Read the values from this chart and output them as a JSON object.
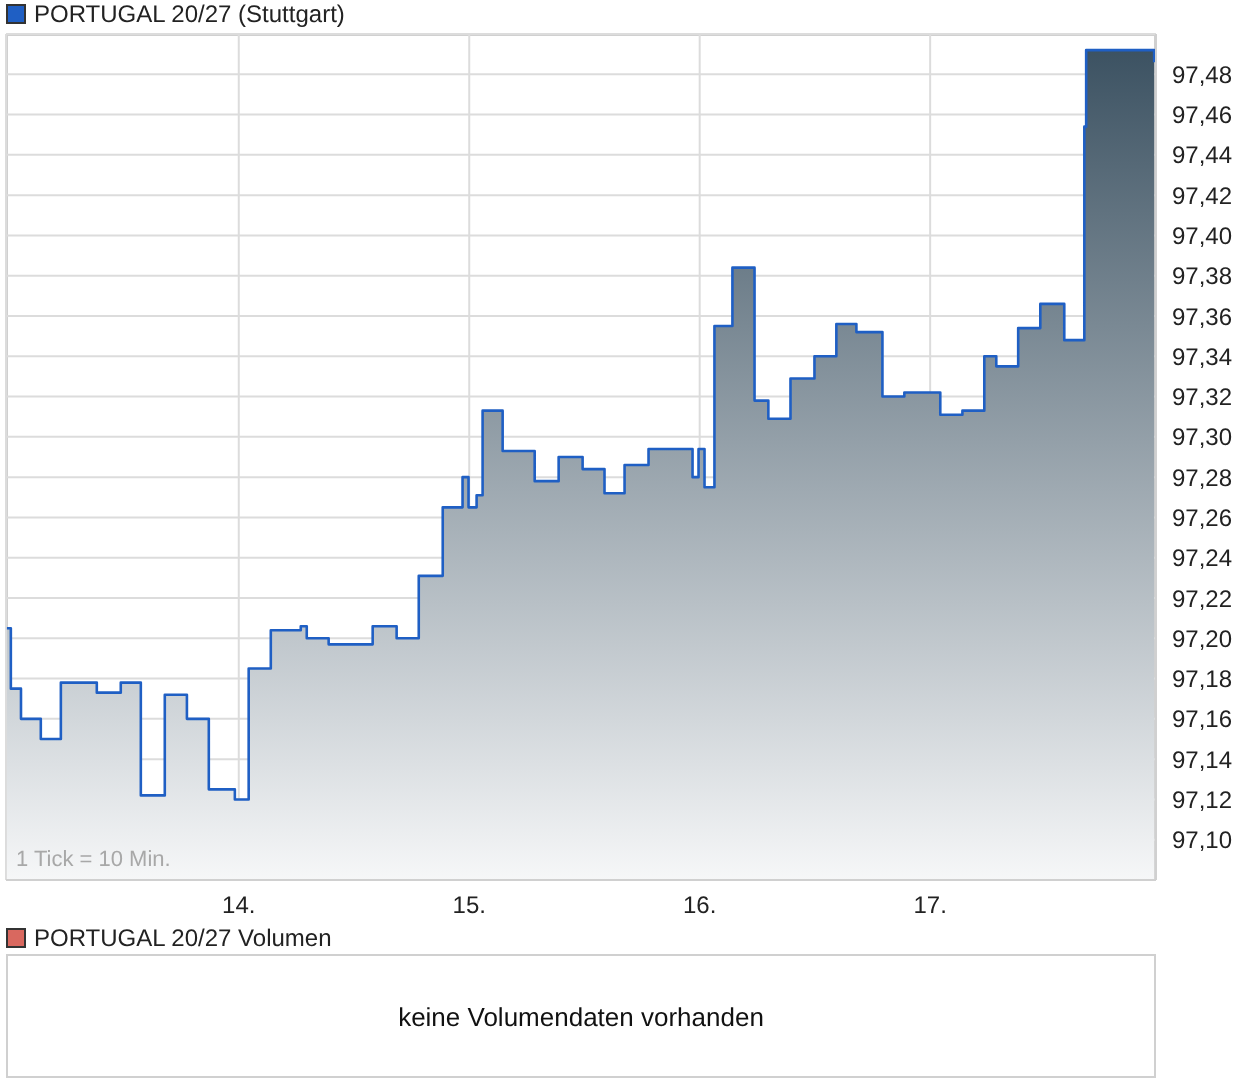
{
  "chart_data": [
    {
      "type": "area",
      "series": [
        {
          "name": "PORTUGAL 20/27 (Stuttgart)",
          "color": "#1f5fc4",
          "x": [
            12.994,
            13.011,
            13.011,
            13.055,
            13.055,
            13.141,
            13.141,
            13.228,
            13.228,
            13.384,
            13.384,
            13.488,
            13.488,
            13.575,
            13.575,
            13.679,
            13.679,
            13.775,
            13.775,
            13.87,
            13.87,
            13.983,
            13.983,
            14.043,
            14.043,
            14.139,
            14.139,
            14.269,
            14.269,
            14.295,
            14.295,
            14.39,
            14.39,
            14.581,
            14.581,
            14.685,
            14.685,
            14.781,
            14.781,
            14.885,
            14.885,
            14.971,
            14.971,
            14.997,
            14.997,
            15.032,
            15.032,
            15.058,
            15.058,
            15.145,
            15.145,
            15.284,
            15.284,
            15.388,
            15.388,
            15.492,
            15.492,
            15.587,
            15.587,
            15.674,
            15.674,
            15.778,
            15.778,
            15.969,
            15.969,
            15.995,
            15.995,
            16.021,
            16.021,
            16.064,
            16.064,
            16.142,
            16.142,
            16.238,
            16.238,
            16.298,
            16.298,
            16.394,
            16.394,
            16.498,
            16.498,
            16.593,
            16.593,
            16.68,
            16.68,
            16.793,
            16.793,
            16.888,
            16.888,
            17.044,
            17.044,
            17.14,
            17.14,
            17.235,
            17.235,
            17.287,
            17.287,
            17.382,
            17.382,
            17.478,
            17.478,
            17.582,
            17.582,
            17.669,
            17.669,
            17.677,
            17.677,
            17.972,
            17.972
          ],
          "values": [
            97.205,
            97.205,
            97.175,
            97.175,
            97.16,
            97.16,
            97.15,
            97.15,
            97.178,
            97.178,
            97.173,
            97.173,
            97.178,
            97.178,
            97.122,
            97.122,
            97.172,
            97.172,
            97.16,
            97.16,
            97.125,
            97.125,
            97.12,
            97.12,
            97.185,
            97.185,
            97.204,
            97.204,
            97.206,
            97.206,
            97.2,
            97.2,
            97.197,
            97.197,
            97.206,
            97.206,
            97.2,
            97.2,
            97.231,
            97.231,
            97.265,
            97.265,
            97.28,
            97.28,
            97.265,
            97.265,
            97.271,
            97.271,
            97.313,
            97.313,
            97.293,
            97.293,
            97.278,
            97.278,
            97.29,
            97.29,
            97.284,
            97.284,
            97.272,
            97.272,
            97.286,
            97.286,
            97.294,
            97.294,
            97.28,
            97.28,
            97.294,
            97.294,
            97.275,
            97.275,
            97.355,
            97.355,
            97.384,
            97.384,
            97.318,
            97.318,
            97.309,
            97.309,
            97.329,
            97.329,
            97.34,
            97.34,
            97.356,
            97.356,
            97.352,
            97.352,
            97.32,
            97.32,
            97.322,
            97.322,
            97.311,
            97.311,
            97.313,
            97.313,
            97.34,
            97.34,
            97.335,
            97.335,
            97.354,
            97.354,
            97.366,
            97.366,
            97.348,
            97.348,
            97.454,
            97.454,
            97.492,
            97.492,
            97.486
          ]
        }
      ],
      "xlim": [
        12.99,
        17.98
      ],
      "xticks": [
        {
          "value": 14,
          "label": "14."
        },
        {
          "value": 15,
          "label": "15."
        },
        {
          "value": 16,
          "label": "16."
        },
        {
          "value": 17,
          "label": "17."
        }
      ],
      "ylim": [
        97.08,
        97.5
      ],
      "yticks": [
        {
          "value": 97.1,
          "label": "97,10"
        },
        {
          "value": 97.12,
          "label": "97,12"
        },
        {
          "value": 97.14,
          "label": "97,14"
        },
        {
          "value": 97.16,
          "label": "97,16"
        },
        {
          "value": 97.18,
          "label": "97,18"
        },
        {
          "value": 97.2,
          "label": "97,20"
        },
        {
          "value": 97.22,
          "label": "97,22"
        },
        {
          "value": 97.24,
          "label": "97,24"
        },
        {
          "value": 97.26,
          "label": "97,26"
        },
        {
          "value": 97.28,
          "label": "97,28"
        },
        {
          "value": 97.3,
          "label": "97,30"
        },
        {
          "value": 97.32,
          "label": "97,32"
        },
        {
          "value": 97.34,
          "label": "97,34"
        },
        {
          "value": 97.36,
          "label": "97,36"
        },
        {
          "value": 97.38,
          "label": "97,38"
        },
        {
          "value": 97.4,
          "label": "97,40"
        },
        {
          "value": 97.42,
          "label": "97,42"
        },
        {
          "value": 97.44,
          "label": "97,44"
        },
        {
          "value": 97.46,
          "label": "97,46"
        },
        {
          "value": 97.48,
          "label": "97,48"
        }
      ],
      "grid": true,
      "legend": "top left",
      "annotations": [
        "1 Tick = 10 Min."
      ]
    },
    {
      "type": "other",
      "series": [
        {
          "name": "PORTUGAL 20/27 Volumen",
          "color": "#d9685f"
        }
      ],
      "legend": "top left",
      "annotations": [
        "keine Volumendaten vorhanden"
      ]
    }
  ]
}
